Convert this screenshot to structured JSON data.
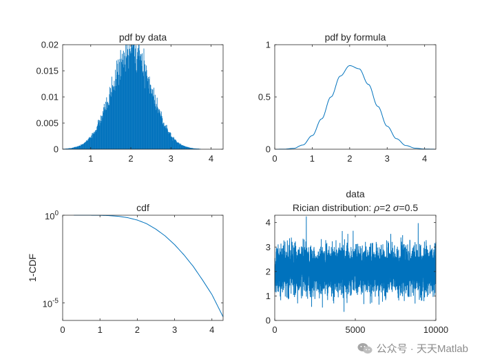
{
  "watermark": {
    "text": "公众号 · 天天Matlab",
    "logo_icon": "wechat-icon"
  },
  "colors": {
    "series": "#0072BD",
    "axes": "#262626",
    "background": "#ffffff"
  },
  "chart_data": [
    {
      "id": "hist",
      "type": "bar",
      "title": "pdf by data",
      "xlabel": "",
      "ylabel": "",
      "xlim": [
        0.3,
        4.3
      ],
      "ylim": [
        0,
        0.02
      ],
      "xticks": [
        1,
        2,
        3,
        4
      ],
      "yticks": [
        0,
        0.005,
        0.01,
        0.015,
        0.02
      ],
      "yticklabels": [
        "0",
        "0.005",
        "0.01",
        "0.015",
        "0.02"
      ],
      "bin_width": 0.01,
      "x_range": [
        0.3,
        4.0
      ],
      "distribution": {
        "family": "Rician",
        "rho": 2,
        "sigma": 0.5
      },
      "peak": {
        "x": 2.0,
        "y": 0.0187
      }
    },
    {
      "id": "pdf",
      "type": "line",
      "title": "pdf by formula",
      "xlabel": "",
      "ylabel": "",
      "xlim": [
        0,
        4.3
      ],
      "ylim": [
        0,
        1
      ],
      "xticks": [
        0,
        1,
        2,
        3,
        4
      ],
      "yticks": [
        0,
        0.5,
        1
      ],
      "yticklabels": [
        "0",
        "0.5",
        "1"
      ],
      "x": [
        0,
        0.25,
        0.5,
        0.75,
        1.0,
        1.25,
        1.5,
        1.75,
        2.0,
        2.25,
        2.5,
        2.75,
        3.0,
        3.25,
        3.5,
        3.75,
        4.0,
        4.3
      ],
      "y": [
        0,
        0.001,
        0.008,
        0.04,
        0.13,
        0.29,
        0.5,
        0.7,
        0.8,
        0.77,
        0.62,
        0.41,
        0.22,
        0.1,
        0.035,
        0.01,
        0.002,
        0.0003
      ]
    },
    {
      "id": "cdf",
      "type": "line",
      "title": "cdf",
      "xlabel": "",
      "ylabel": "1-CDF",
      "yscale": "log",
      "xlim": [
        0,
        4.3
      ],
      "ylim": [
        1e-06,
        1
      ],
      "xticks": [
        0,
        1,
        2,
        3,
        4
      ],
      "ytick_labels": [
        {
          "value": 1,
          "base": "10",
          "exp": "0"
        },
        {
          "value": 1e-05,
          "base": "10",
          "exp": "-5"
        }
      ],
      "x": [
        0.3,
        0.5,
        0.75,
        1.0,
        1.25,
        1.5,
        1.75,
        2.0,
        2.25,
        2.5,
        2.75,
        3.0,
        3.25,
        3.5,
        3.75,
        4.0,
        4.3
      ],
      "y": [
        1.0,
        0.999,
        0.995,
        0.984,
        0.95,
        0.86,
        0.72,
        0.53,
        0.33,
        0.16,
        0.065,
        0.021,
        0.0055,
        0.0012,
        0.0002,
        3e-05,
        1.6e-06
      ]
    },
    {
      "id": "data",
      "type": "line",
      "title": "data",
      "subtitle": "Rician distribution: ρ=2 σ=0.5",
      "subtitle_parts": {
        "prefix": "Rician distribution: ",
        "rho_symbol": "ρ",
        "rho_value": "=2 ",
        "sigma_symbol": "σ",
        "sigma_value": "=0.5"
      },
      "xlabel": "",
      "ylabel": "",
      "xlim": [
        0,
        10000
      ],
      "ylim": [
        0,
        4.3
      ],
      "xticks": [
        0,
        5000,
        10000
      ],
      "yticks": [
        0,
        1,
        2,
        3,
        4
      ],
      "n_samples": 10000,
      "mean": 2.05,
      "std": 0.5,
      "max": 4.25,
      "min": 0.35
    }
  ]
}
